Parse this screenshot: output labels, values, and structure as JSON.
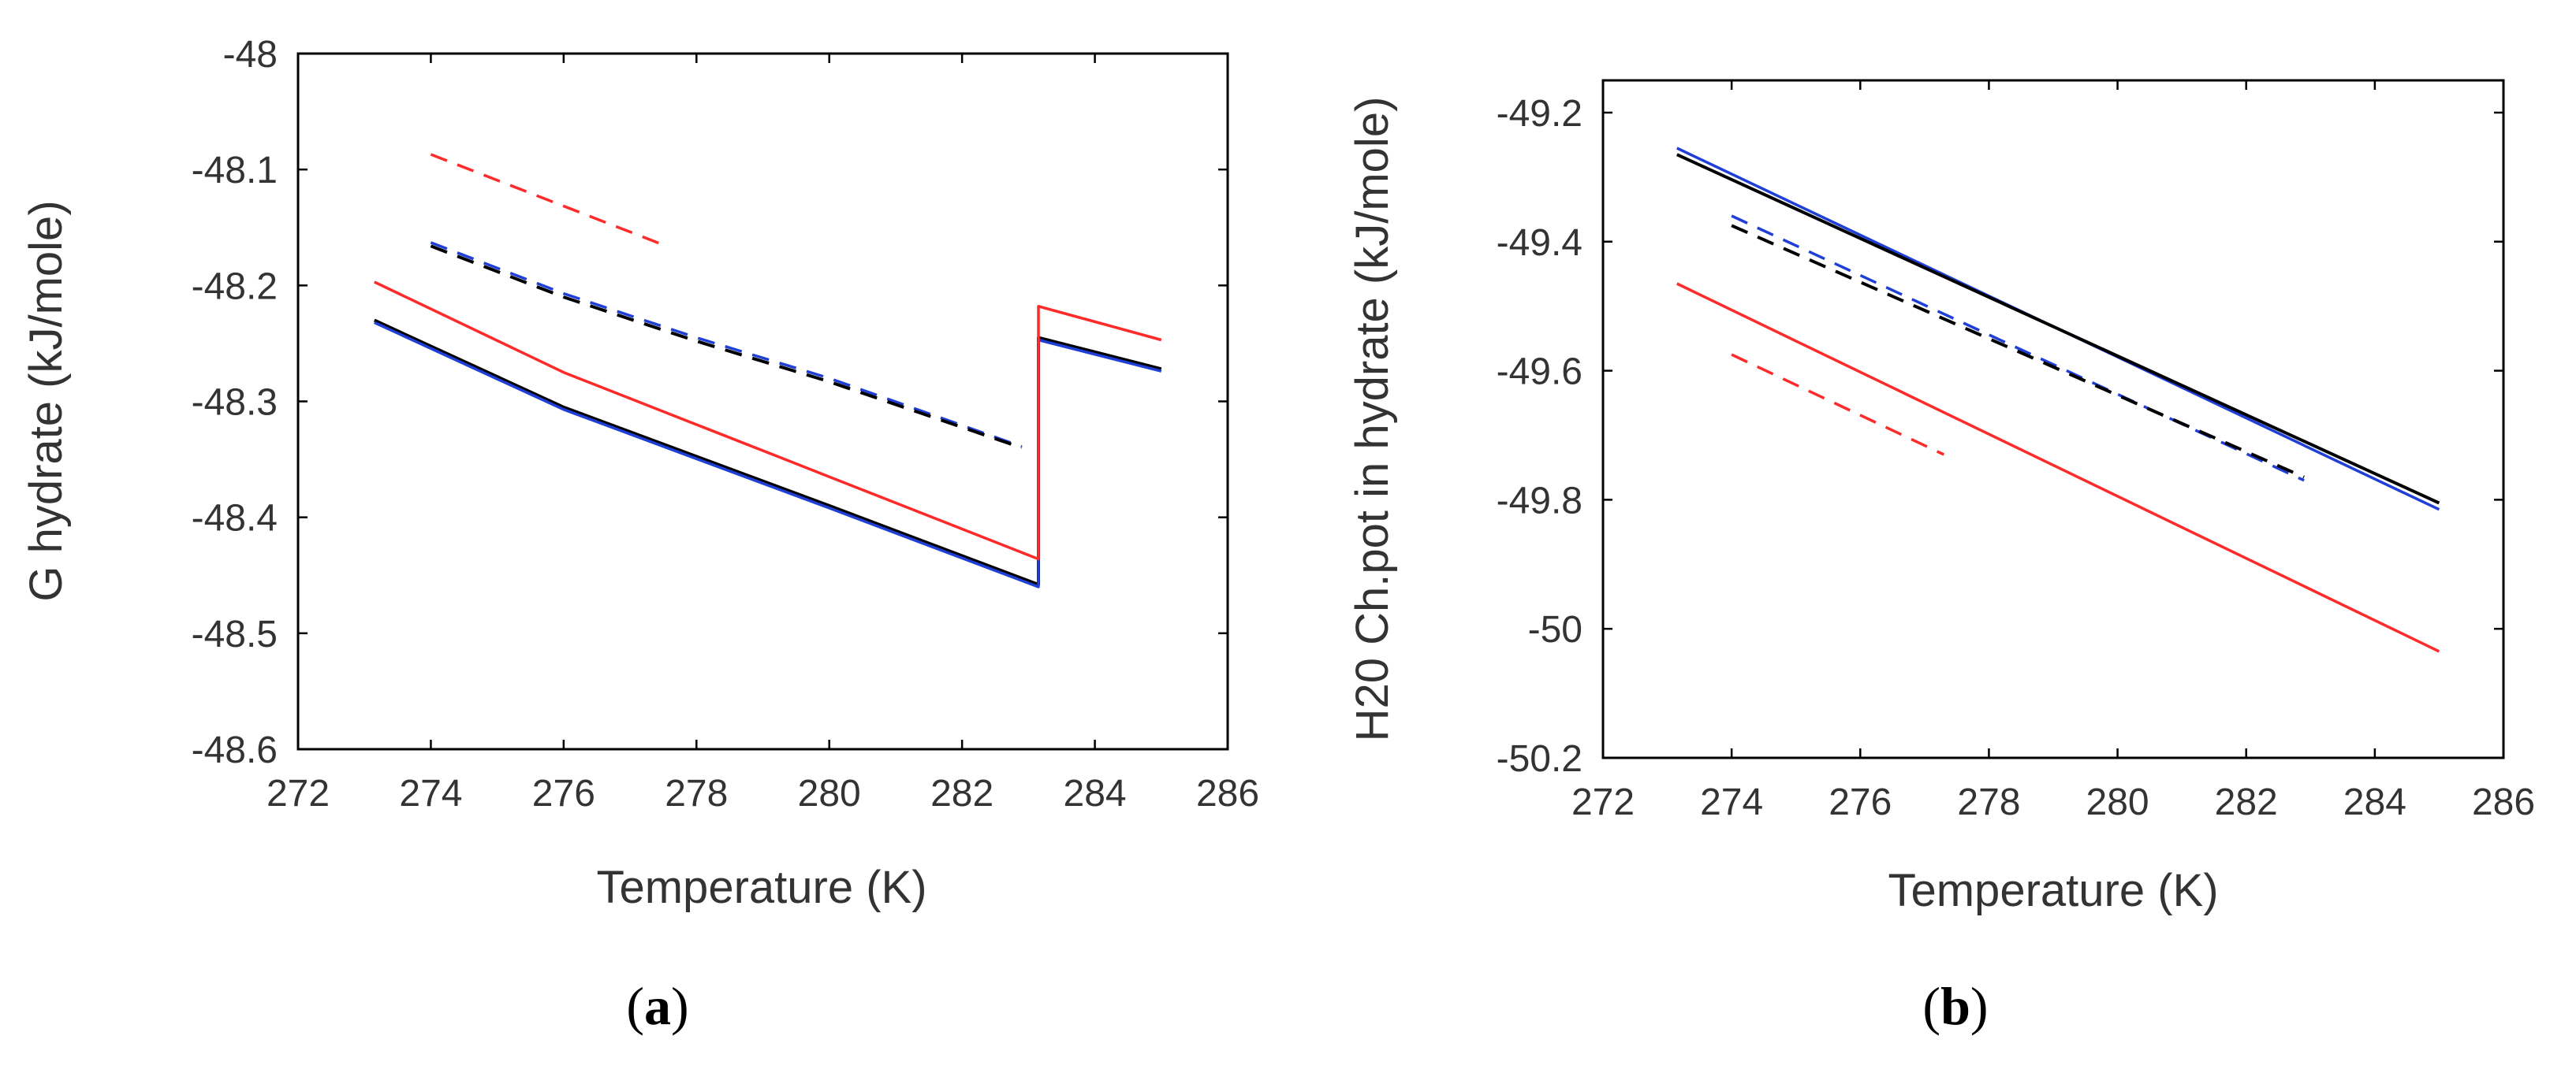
{
  "chart_data": [
    {
      "id": "a",
      "type": "line",
      "panel_label": "(a)",
      "panel_letter": "a",
      "xlabel": "Temperature (K)",
      "ylabel": "G hydrate (kJ/mole)",
      "xlim": [
        272,
        286
      ],
      "ylim": [
        -48.6,
        -48
      ],
      "xticks": [
        272,
        274,
        276,
        278,
        280,
        282,
        284,
        286
      ],
      "yticks": [
        -48,
        -48.1,
        -48.2,
        -48.3,
        -48.4,
        -48.5,
        -48.6
      ],
      "grid": false,
      "series": [
        {
          "name": "black solid",
          "color": "#000000",
          "style": "solid",
          "x": [
            273.15,
            276,
            280,
            283.15,
            283.15,
            285
          ],
          "y": [
            -48.23,
            -48.305,
            -48.39,
            -48.458,
            -48.245,
            -48.272
          ]
        },
        {
          "name": "blue solid",
          "color": "#1f3fd6",
          "style": "solid",
          "x": [
            273.15,
            276,
            280,
            283.15,
            283.15,
            285
          ],
          "y": [
            -48.232,
            -48.307,
            -48.392,
            -48.46,
            -48.247,
            -48.274
          ]
        },
        {
          "name": "red solid",
          "color": "#ff2a2a",
          "style": "solid",
          "x": [
            273.15,
            276,
            280,
            283.15,
            283.15,
            285
          ],
          "y": [
            -48.197,
            -48.275,
            -48.365,
            -48.436,
            -48.218,
            -48.247
          ]
        },
        {
          "name": "blue dashed",
          "color": "#1f3fd6",
          "style": "dashed",
          "x": [
            274,
            276,
            278,
            280,
            282.9
          ],
          "y": [
            -48.163,
            -48.207,
            -48.245,
            -48.28,
            -48.339
          ]
        },
        {
          "name": "black dashed",
          "color": "#000000",
          "style": "dashed",
          "x": [
            274,
            276,
            278,
            280,
            282.9
          ],
          "y": [
            -48.166,
            -48.21,
            -48.248,
            -48.283,
            -48.34
          ]
        },
        {
          "name": "red dashed",
          "color": "#ff2a2a",
          "style": "dashed",
          "x": [
            274,
            277.5
          ],
          "y": [
            -48.087,
            -48.165
          ]
        }
      ]
    },
    {
      "id": "b",
      "type": "line",
      "panel_label": "(b)",
      "panel_letter": "b",
      "xlabel": "Temperature (K)",
      "ylabel": "H20 Ch.pot in hydrate (kJ/mole)",
      "xlim": [
        272,
        286
      ],
      "ylim": [
        -50.2,
        -49.15
      ],
      "xticks": [
        272,
        274,
        276,
        278,
        280,
        282,
        284,
        286
      ],
      "yticks": [
        -49.2,
        -49.4,
        -49.6,
        -49.8,
        -50,
        -50.2
      ],
      "grid": false,
      "series": [
        {
          "name": "blue solid",
          "color": "#1f3fd6",
          "style": "solid",
          "x": [
            273.15,
            285
          ],
          "y": [
            -49.255,
            -49.815
          ]
        },
        {
          "name": "black solid",
          "color": "#000000",
          "style": "solid",
          "x": [
            273.15,
            285
          ],
          "y": [
            -49.265,
            -49.805
          ]
        },
        {
          "name": "red solid",
          "color": "#ff2a2a",
          "style": "solid",
          "x": [
            273.15,
            285
          ],
          "y": [
            -49.465,
            -50.035
          ]
        },
        {
          "name": "blue dashed",
          "color": "#1f3fd6",
          "style": "dashed",
          "x": [
            274,
            282.9
          ],
          "y": [
            -49.36,
            -49.77
          ]
        },
        {
          "name": "black dashed",
          "color": "#000000",
          "style": "dashed",
          "x": [
            274,
            282.9
          ],
          "y": [
            -49.375,
            -49.765
          ]
        },
        {
          "name": "red dashed",
          "color": "#ff2a2a",
          "style": "dashed",
          "x": [
            274,
            277.3
          ],
          "y": [
            -49.575,
            -49.73
          ]
        }
      ]
    }
  ]
}
